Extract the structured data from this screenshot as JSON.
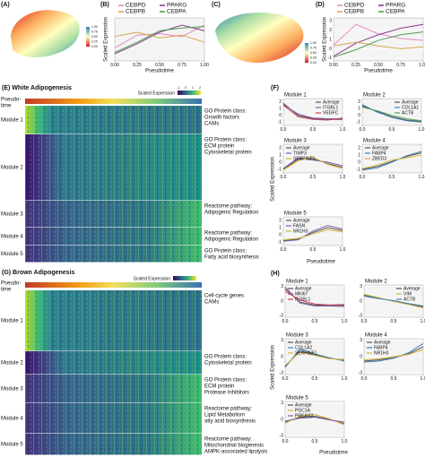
{
  "figure": {
    "a": {
      "label": "(A)",
      "colorbar": [
        "1.00",
        "0.75",
        "0.50",
        "0.25",
        "0.00"
      ]
    },
    "c": {
      "label": "(C)",
      "colorbar": [
        "1.00",
        "0.75",
        "0.50",
        "0.25",
        "0.00"
      ]
    },
    "b_label": "(B)",
    "d_label": "(D)",
    "f_label": "(F)",
    "h_label": "(H)",
    "e": {
      "title": "(E) White Adipogenesis",
      "pseudo": [
        "Pseudo-",
        "time"
      ],
      "scale_title": "Scaled Expression",
      "scale_ticks": [
        "-1",
        "0",
        "1",
        "2"
      ],
      "modules": [
        "Module 1",
        "Module 2",
        "Module 3",
        "Module 4",
        "Module 5"
      ],
      "notes": [
        [
          "GO Protein class:",
          "Growth factors",
          "CAMs"
        ],
        [
          "GO Protein class:",
          "ECM protein",
          "Cytoskeletal protein"
        ],
        [
          "Reactome pathway:",
          "Adipogenic Regulation"
        ],
        [
          "Reactome pathway:",
          "Adipogenic Regulation"
        ],
        [
          "GO Protein class:",
          "Fatty acid biosynthesis"
        ]
      ]
    },
    "g": {
      "title": "(G) Brown Adipogenesis",
      "pseudo": [
        "Pseudo-",
        "time"
      ],
      "scale_title": "Scaled Expression",
      "modules": [
        "Module 1",
        "Module 2",
        "Module 3",
        "Module 4",
        "Module 5"
      ],
      "notes": [
        [
          "Cell-cycle genes",
          "CAMs"
        ],
        [
          "GO Protein class:",
          "Cytoskeletal protein"
        ],
        [
          "GO Protein class:",
          "ECM protein",
          "Protease Inhibitors"
        ],
        [
          "Reactome pathway:",
          "Lipid Metabolism",
          "atty acid biosynthesis"
        ],
        [
          "Reactome pathway:",
          "Mitochondrial biogenesis",
          "AMPK-associated lipolysis"
        ]
      ]
    },
    "f_ylabel": "Scaled Expression",
    "f_xlabel": "Pseudotime",
    "h_ylabel": "Scaled Expression",
    "h_xlabel": "Pseudotime"
  },
  "chart_data": [
    {
      "type": "line",
      "xlabel": "Pseudotime",
      "ylabel": "Scaled Expression",
      "legend": "top",
      "x": [
        0,
        0.25,
        0.5,
        0.75,
        1
      ],
      "xlim": [
        0,
        1
      ],
      "ylim": [
        -1.5,
        1.5
      ],
      "xticks": [
        {
          "value": 0,
          "label": "0.00"
        },
        {
          "value": 0.25,
          "label": "0.25"
        },
        {
          "value": 0.5,
          "label": "0.50"
        },
        {
          "value": 0.75,
          "label": "0.75"
        },
        {
          "value": 1,
          "label": "1.00"
        }
      ],
      "series": [
        {
          "name": "CEBPD",
          "color": "#e58bc0",
          "values": [
            -0.6,
            0.3,
            0.4,
            0.2,
            1.0
          ]
        },
        {
          "name": "PPARG",
          "color": "#8b3a8f",
          "values": [
            -1.0,
            -0.3,
            0.5,
            1.0,
            0.6
          ]
        },
        {
          "name": "CEBPB",
          "color": "#d8a84a",
          "values": [
            0.2,
            0.5,
            0.1,
            0.3,
            -0.2
          ]
        },
        {
          "name": "CEBPA",
          "color": "#4f9e4f",
          "values": [
            -0.9,
            -0.2,
            0.6,
            0.8,
            0.9
          ]
        }
      ]
    },
    {
      "type": "line",
      "xlabel": "Pseudotime",
      "ylabel": "Scaled Expression",
      "legend": "top",
      "x": [
        0,
        0.25,
        0.5,
        0.75,
        1
      ],
      "xlim": [
        0,
        1
      ],
      "ylim": [
        -1.3,
        3.3
      ],
      "xticks": [
        {
          "value": 0,
          "label": "0.00"
        },
        {
          "value": 0.25,
          "label": "0.25"
        },
        {
          "value": 0.5,
          "label": "0.50"
        },
        {
          "value": 0.75,
          "label": "0.75"
        },
        {
          "value": 1,
          "label": "1.00"
        }
      ],
      "yticks": [
        -1,
        0,
        1,
        2,
        3
      ],
      "series": [
        {
          "name": "CEBPD",
          "color": "#e58bc0",
          "values": [
            0.4,
            2.6,
            1.6,
            1.1,
            0.9
          ]
        },
        {
          "name": "PPARG",
          "color": "#8b3a8f",
          "values": [
            -0.8,
            0.6,
            1.5,
            2.2,
            2.6
          ]
        },
        {
          "name": "CEBPB",
          "color": "#d8a84a",
          "values": [
            0.3,
            0.7,
            0.3,
            0.0,
            0.2
          ]
        },
        {
          "name": "CEBPA",
          "color": "#4f9e4f",
          "values": [
            -0.9,
            -0.1,
            0.9,
            1.5,
            1.8
          ]
        }
      ]
    },
    {
      "type": "line",
      "title": "Module 1",
      "legend": "upper right",
      "x": [
        0,
        0.25,
        0.5,
        0.75,
        1
      ],
      "xlim": [
        0,
        1
      ],
      "ylim": [
        -1.5,
        2.5
      ],
      "xticks": [
        {
          "value": 0,
          "label": "0.0"
        },
        0.5,
        {
          "value": 1,
          "label": "1.0"
        }
      ],
      "yticks": [
        -1,
        0,
        1,
        2
      ],
      "series": [
        {
          "name": "Average",
          "color": "#555555",
          "values": [
            1.8,
            0.0,
            -0.5,
            -0.6,
            -0.6
          ]
        },
        {
          "name": "ITGBL1",
          "color": "#7b5ea7",
          "values": [
            1.6,
            0.2,
            -0.4,
            -0.5,
            -0.5
          ]
        },
        {
          "name": "VEGFC",
          "color": "#d0415a",
          "values": [
            1.5,
            -0.2,
            -0.6,
            -0.7,
            -0.4
          ]
        }
      ]
    },
    {
      "type": "line",
      "title": "Module 2",
      "legend": "upper right",
      "x": [
        0,
        0.25,
        0.5,
        0.75,
        1
      ],
      "xlim": [
        0,
        1
      ],
      "ylim": [
        -1.5,
        2.5
      ],
      "xticks": [
        {
          "value": 0,
          "label": "0.0"
        },
        0.5,
        {
          "value": 1,
          "label": "1.0"
        }
      ],
      "yticks": [
        -1,
        0,
        1,
        2
      ],
      "series": [
        {
          "name": "Average",
          "color": "#555555",
          "values": [
            1.4,
            0.6,
            -0.2,
            -0.7,
            -0.9
          ]
        },
        {
          "name": "COL1A1",
          "color": "#3f7fb5",
          "values": [
            1.6,
            0.5,
            -0.3,
            -0.8,
            -1.0
          ]
        },
        {
          "name": "ACTB",
          "color": "#58a55c",
          "values": [
            1.2,
            0.7,
            0.0,
            -0.5,
            -0.8
          ]
        }
      ]
    },
    {
      "type": "line",
      "title": "Module 3",
      "legend": "upper left",
      "x": [
        0,
        0.25,
        0.5,
        0.75,
        1
      ],
      "xlim": [
        0,
        1
      ],
      "ylim": [
        -1.5,
        2.5
      ],
      "xticks": [
        {
          "value": 0,
          "label": "0.0"
        },
        0.5,
        {
          "value": 1,
          "label": "1.0"
        }
      ],
      "yticks": [
        -1,
        0,
        1,
        2
      ],
      "series": [
        {
          "name": "Average",
          "color": "#555555",
          "values": [
            -1.0,
            0.4,
            0.5,
            -0.2,
            -0.7
          ]
        },
        {
          "name": "TIMP3",
          "color": "#7b5ea7",
          "values": [
            -0.9,
            0.6,
            0.3,
            0.0,
            -0.5
          ]
        },
        {
          "name": "SERPINF1",
          "color": "#d8b43a",
          "values": [
            -1.1,
            0.2,
            0.7,
            -0.3,
            -0.9
          ]
        }
      ]
    },
    {
      "type": "line",
      "title": "Module 4",
      "legend": "upper left",
      "x": [
        0,
        0.25,
        0.5,
        0.75,
        1
      ],
      "xlim": [
        0,
        1
      ],
      "ylim": [
        -1.5,
        2.5
      ],
      "xticks": [
        {
          "value": 0,
          "label": "0.0"
        },
        0.5,
        {
          "value": 1,
          "label": "1.0"
        }
      ],
      "yticks": [
        -1,
        0,
        1,
        2
      ],
      "series": [
        {
          "name": "Average",
          "color": "#555555",
          "values": [
            -1.0,
            -0.6,
            0.1,
            0.8,
            1.3
          ]
        },
        {
          "name": "FABP4",
          "color": "#3f7fb5",
          "values": [
            -1.1,
            -0.8,
            0.0,
            0.9,
            1.5
          ]
        },
        {
          "name": "ZBED3",
          "color": "#d8b43a",
          "values": [
            -0.9,
            -0.4,
            0.3,
            0.6,
            1.0
          ]
        }
      ]
    },
    {
      "type": "line",
      "title": "Module 5",
      "legend": "upper left",
      "x": [
        0,
        0.25,
        0.5,
        0.75,
        1
      ],
      "xlim": [
        0,
        1
      ],
      "ylim": [
        -1.5,
        2.5
      ],
      "xticks": [
        {
          "value": 0,
          "label": "0.0"
        },
        0.5,
        {
          "value": 1,
          "label": "1.0"
        }
      ],
      "yticks": [
        -1,
        0,
        1,
        2
      ],
      "series": [
        {
          "name": "Average",
          "color": "#555555",
          "values": [
            -0.8,
            -0.6,
            0.3,
            1.0,
            0.6
          ]
        },
        {
          "name": "FASN",
          "color": "#7b5ea7",
          "values": [
            -0.9,
            -0.7,
            0.5,
            1.3,
            0.8
          ]
        },
        {
          "name": "NR1H3",
          "color": "#d8b43a",
          "values": [
            -0.7,
            -0.5,
            0.1,
            0.7,
            0.4
          ]
        }
      ]
    },
    {
      "type": "line",
      "title": "Module 1",
      "legend": "upper left",
      "x": [
        0,
        0.25,
        0.5,
        0.75,
        1
      ],
      "xlim": [
        0,
        1
      ],
      "ylim": [
        -3.3,
        3.3
      ],
      "xticks": [
        {
          "value": 0,
          "label": "0.0"
        },
        0.5,
        {
          "value": 1,
          "label": "1.0"
        }
      ],
      "yticks": [
        -3,
        0,
        3
      ],
      "series": [
        {
          "name": "Average",
          "color": "#555555",
          "values": [
            2.5,
            -0.2,
            -0.8,
            -0.9,
            -0.9
          ]
        },
        {
          "name": "MKI67",
          "color": "#7b5ea7",
          "values": [
            2.9,
            -0.4,
            -1.0,
            -1.0,
            -1.1
          ]
        },
        {
          "name": "ITGBL1",
          "color": "#d0415a",
          "values": [
            2.0,
            0.2,
            -0.6,
            -0.8,
            -0.7
          ]
        }
      ]
    },
    {
      "type": "line",
      "title": "Module 2",
      "legend": "upper right",
      "x": [
        0,
        0.25,
        0.5,
        0.75,
        1
      ],
      "xlim": [
        0,
        1
      ],
      "ylim": [
        -3.3,
        3.3
      ],
      "xticks": [
        {
          "value": 0,
          "label": "0.0"
        },
        0.5,
        {
          "value": 1,
          "label": "1.0"
        }
      ],
      "yticks": [
        -3,
        0,
        3
      ],
      "series": [
        {
          "name": "Average",
          "color": "#555555",
          "values": [
            1.2,
            0.6,
            0.0,
            -0.6,
            -1.2
          ]
        },
        {
          "name": "VIM",
          "color": "#d8b43a",
          "values": [
            1.4,
            0.7,
            -0.1,
            -0.7,
            -1.4
          ]
        },
        {
          "name": "ACTB",
          "color": "#3f7fb5",
          "values": [
            1.0,
            0.5,
            0.1,
            -0.5,
            -1.0
          ]
        }
      ]
    },
    {
      "type": "line",
      "title": "Module 3",
      "legend": "upper left",
      "x": [
        0,
        0.25,
        0.5,
        0.75,
        1
      ],
      "xlim": [
        0,
        1
      ],
      "ylim": [
        -3.3,
        3.3
      ],
      "xticks": [
        {
          "value": 0,
          "label": "0.0"
        },
        0.5,
        {
          "value": 1,
          "label": "1.0"
        }
      ],
      "yticks": [
        -3,
        0,
        3
      ],
      "series": [
        {
          "name": "Average",
          "color": "#555555",
          "values": [
            -1.8,
            1.0,
            0.4,
            -0.3,
            -0.6
          ]
        },
        {
          "name": "COL1A2",
          "color": "#3f7fb5",
          "values": [
            -2.0,
            1.4,
            0.5,
            -0.2,
            -0.8
          ]
        },
        {
          "name": "SERPINF1",
          "color": "#d8b43a",
          "values": [
            -1.6,
            0.8,
            0.2,
            -0.4,
            -0.5
          ]
        }
      ]
    },
    {
      "type": "line",
      "title": "Module 4",
      "legend": "upper left",
      "x": [
        0,
        0.25,
        0.5,
        0.75,
        1
      ],
      "xlim": [
        0,
        1
      ],
      "ylim": [
        -3.3,
        3.3
      ],
      "xticks": [
        {
          "value": 0,
          "label": "0.0"
        },
        0.5,
        {
          "value": 1,
          "label": "1.0"
        }
      ],
      "yticks": [
        -3,
        0,
        3
      ],
      "series": [
        {
          "name": "Average",
          "color": "#555555",
          "values": [
            -0.8,
            -0.6,
            -0.2,
            0.5,
            1.8
          ]
        },
        {
          "name": "FABP4",
          "color": "#3f7fb5",
          "values": [
            -1.0,
            -0.8,
            -0.3,
            0.7,
            2.4
          ]
        },
        {
          "name": "NR1H3",
          "color": "#d8b43a",
          "values": [
            -0.6,
            -0.4,
            0.0,
            0.4,
            1.3
          ]
        }
      ]
    },
    {
      "type": "line",
      "title": "Module 5",
      "legend": "upper left",
      "x": [
        0,
        0.25,
        0.5,
        0.75,
        1
      ],
      "xlim": [
        0,
        1
      ],
      "ylim": [
        -3.3,
        3.3
      ],
      "xticks": [
        {
          "value": 0,
          "label": "0.0"
        },
        0.5,
        {
          "value": 1,
          "label": "1.0"
        }
      ],
      "yticks": [
        -3,
        0,
        3
      ],
      "series": [
        {
          "name": "Average",
          "color": "#555555",
          "values": [
            -0.5,
            0.4,
            0.6,
            0.0,
            -0.8
          ]
        },
        {
          "name": "PGC1A",
          "color": "#d8b43a",
          "values": [
            -0.7,
            0.6,
            0.9,
            0.1,
            -1.0
          ]
        },
        {
          "name": "PRKAG2",
          "color": "#7b5ea7",
          "values": [
            -0.3,
            0.2,
            0.4,
            -0.1,
            -0.5
          ]
        }
      ]
    }
  ]
}
